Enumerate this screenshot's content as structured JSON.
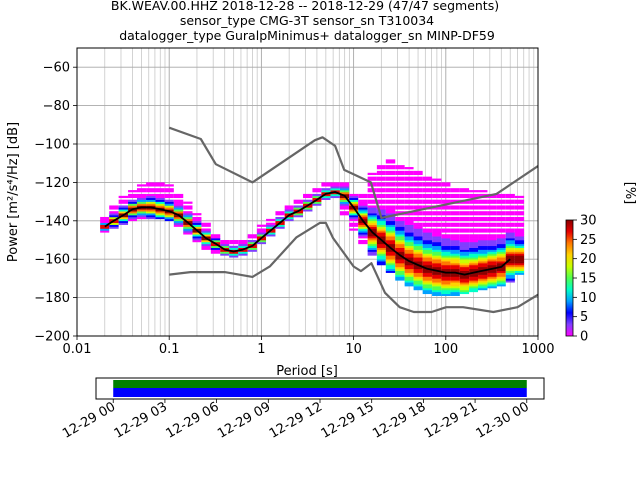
{
  "title": {
    "line1": "BK.WEAV.00.HHZ   2018-12-28 -- 2018-12-29  (47/47 segments)",
    "line2": "sensor_type CMG-3T sensor_sn T310034",
    "line3": "datalogger_type GuralpMinimus+ datalogger_sn MINP-DF59"
  },
  "chart_data": [
    {
      "type": "heatmap",
      "title": "",
      "xlabel": "Period [s]",
      "ylabel": "Power [m²/s⁴/Hz] [dB]",
      "xscale": "log",
      "xlim": [
        0.01,
        1000
      ],
      "ylim": [
        -200,
        -50
      ],
      "x_ticks": [
        {
          "v": 0.01,
          "label": "0.01"
        },
        {
          "v": 0.1,
          "label": "0.1"
        },
        {
          "v": 1,
          "label": "1"
        },
        {
          "v": 10,
          "label": "10"
        },
        {
          "v": 100,
          "label": "100"
        },
        {
          "v": 1000,
          "label": "1000"
        }
      ],
      "y_ticks": [
        {
          "v": -60,
          "label": "−60"
        },
        {
          "v": -80,
          "label": "−80"
        },
        {
          "v": -100,
          "label": "−100"
        },
        {
          "v": -120,
          "label": "−120"
        },
        {
          "v": -140,
          "label": "−140"
        },
        {
          "v": -160,
          "label": "−160"
        },
        {
          "v": -180,
          "label": "−180"
        },
        {
          "v": -200,
          "label": "−200"
        }
      ],
      "grid": true,
      "colorbar": {
        "label": "[%]",
        "range": [
          0,
          30
        ],
        "ticks": [
          {
            "v": 0,
            "label": "0"
          },
          {
            "v": 5,
            "label": "5"
          },
          {
            "v": 10,
            "label": "10"
          },
          {
            "v": 15,
            "label": "15"
          },
          {
            "v": 20,
            "label": "20"
          },
          {
            "v": 25,
            "label": "25"
          },
          {
            "v": 30,
            "label": "30"
          }
        ],
        "colors": [
          "#ff00ff",
          "#7f3fff",
          "#0000ff",
          "#00a0ff",
          "#00ffc8",
          "#50ff50",
          "#c8ff00",
          "#ffd200",
          "#ff7800",
          "#e60000",
          "#8b0000"
        ]
      },
      "series": [
        {
          "role": "noise-model-high",
          "color": "#666666",
          "x": [
            0.1,
            0.22,
            0.32,
            0.8,
            3.8,
            4.6,
            6.3,
            7.9,
            15.4,
            20,
            354.8,
            1000
          ],
          "y": [
            -91.5,
            -97.4,
            -110.5,
            -120,
            -98,
            -96.5,
            -101,
            -113.5,
            -120,
            -138.5,
            -126,
            -111.5
          ]
        },
        {
          "role": "noise-model-low",
          "color": "#666666",
          "x": [
            0.1,
            0.17,
            0.4,
            0.8,
            1.24,
            2.4,
            4.3,
            5,
            6,
            10,
            12,
            15.6,
            21.9,
            31.6,
            45,
            70,
            101,
            154,
            328,
            600,
            1000
          ],
          "y": [
            -168,
            -166.7,
            -166.7,
            -169.2,
            -163.7,
            -148.6,
            -141.1,
            -141.1,
            -149,
            -163.8,
            -166.2,
            -162.1,
            -177.5,
            -185,
            -187.5,
            -187.5,
            -185,
            -185,
            -187.5,
            -185,
            -178.5
          ]
        },
        {
          "role": "mode",
          "color": "#000000",
          "x": [
            0.02,
            0.025,
            0.032,
            0.04,
            0.05,
            0.063,
            0.08,
            0.1,
            0.126,
            0.16,
            0.2,
            0.25,
            0.32,
            0.4,
            0.5,
            0.63,
            0.8,
            1,
            1.26,
            1.6,
            2,
            2.5,
            3.2,
            4,
            5,
            6.3,
            8,
            10,
            12.6,
            16,
            20,
            25,
            32,
            40,
            50,
            63,
            80,
            100,
            126,
            160,
            200,
            250,
            320,
            400,
            500
          ],
          "y": [
            -143,
            -140,
            -137,
            -134,
            -133,
            -133,
            -134,
            -135,
            -137,
            -141,
            -145,
            -149,
            -152,
            -155,
            -156,
            -155,
            -153,
            -149,
            -145,
            -141,
            -137,
            -135,
            -132,
            -129,
            -126,
            -125,
            -127,
            -133,
            -140,
            -146,
            -150,
            -154,
            -158,
            -161,
            -163,
            -165,
            -166,
            -167,
            -167,
            -168,
            -167,
            -166,
            -165,
            -164,
            -160
          ]
        }
      ],
      "density_cells": [
        {
          "x": 0.02,
          "y_min": -146,
          "y_max": -138
        },
        {
          "x": 0.025,
          "y_min": -144,
          "y_max": -132
        },
        {
          "x": 0.032,
          "y_min": -142,
          "y_max": -127
        },
        {
          "x": 0.04,
          "y_min": -140,
          "y_max": -124
        },
        {
          "x": 0.05,
          "y_min": -139,
          "y_max": -121
        },
        {
          "x": 0.063,
          "y_min": -139,
          "y_max": -120
        },
        {
          "x": 0.08,
          "y_min": -139,
          "y_max": -119
        },
        {
          "x": 0.1,
          "y_min": -140,
          "y_max": -121
        },
        {
          "x": 0.126,
          "y_min": -143,
          "y_max": -125
        },
        {
          "x": 0.16,
          "y_min": -147,
          "y_max": -130
        },
        {
          "x": 0.2,
          "y_min": -151,
          "y_max": -136
        },
        {
          "x": 0.25,
          "y_min": -155,
          "y_max": -141
        },
        {
          "x": 0.32,
          "y_min": -157,
          "y_max": -146
        },
        {
          "x": 0.4,
          "y_min": -159,
          "y_max": -149
        },
        {
          "x": 0.5,
          "y_min": -159,
          "y_max": -150
        },
        {
          "x": 0.63,
          "y_min": -158,
          "y_max": -149
        },
        {
          "x": 0.8,
          "y_min": -156,
          "y_max": -146
        },
        {
          "x": 1,
          "y_min": -152,
          "y_max": -142
        },
        {
          "x": 1.26,
          "y_min": -148,
          "y_max": -139
        },
        {
          "x": 1.6,
          "y_min": -144,
          "y_max": -135
        },
        {
          "x": 2,
          "y_min": -140,
          "y_max": -131
        },
        {
          "x": 2.5,
          "y_min": -138,
          "y_max": -128
        },
        {
          "x": 3.2,
          "y_min": -135,
          "y_max": -125
        },
        {
          "x": 4,
          "y_min": -132,
          "y_max": -122
        },
        {
          "x": 5,
          "y_min": -129,
          "y_max": -120
        },
        {
          "x": 6.3,
          "y_min": -129,
          "y_max": -120
        },
        {
          "x": 8,
          "y_min": -138,
          "y_max": -120
        },
        {
          "x": 10,
          "y_min": -145,
          "y_max": -125
        },
        {
          "x": 12.6,
          "y_min": -152,
          "y_max": -125
        },
        {
          "x": 16,
          "y_min": -158,
          "y_max": -115
        },
        {
          "x": 20,
          "y_min": -163,
          "y_max": -110
        },
        {
          "x": 25,
          "y_min": -167,
          "y_max": -108
        },
        {
          "x": 32,
          "y_min": -171,
          "y_max": -110
        },
        {
          "x": 40,
          "y_min": -174,
          "y_max": -112
        },
        {
          "x": 50,
          "y_min": -176,
          "y_max": -114
        },
        {
          "x": 63,
          "y_min": -178,
          "y_max": -116
        },
        {
          "x": 80,
          "y_min": -179,
          "y_max": -118
        },
        {
          "x": 100,
          "y_min": -179,
          "y_max": -120
        },
        {
          "x": 126,
          "y_min": -179,
          "y_max": -122
        },
        {
          "x": 160,
          "y_min": -178,
          "y_max": -122
        },
        {
          "x": 200,
          "y_min": -177,
          "y_max": -124
        },
        {
          "x": 250,
          "y_min": -176,
          "y_max": -124
        },
        {
          "x": 320,
          "y_min": -175,
          "y_max": -125
        },
        {
          "x": 400,
          "y_min": -174,
          "y_max": -125
        },
        {
          "x": 500,
          "y_min": -172,
          "y_max": -125
        },
        {
          "x": 630,
          "y_min": -168,
          "y_max": -127
        }
      ]
    },
    {
      "type": "timeline",
      "title": "",
      "xlim": [
        "2018-12-28 23:00",
        "2018-12-30 01:00"
      ],
      "ticks": [
        "12-29 00",
        "12-29 03",
        "12-29 06",
        "12-29 09",
        "12-29 12",
        "12-29 15",
        "12-29 18",
        "12-29 21",
        "12-30 00"
      ],
      "bars": [
        {
          "role": "data",
          "color": "#008000",
          "start": "2018-12-29 00:00",
          "end": "2018-12-30 00:00"
        },
        {
          "role": "segments",
          "color": "#0000ff",
          "start": "2018-12-29 00:00",
          "end": "2018-12-30 00:00"
        }
      ]
    }
  ]
}
